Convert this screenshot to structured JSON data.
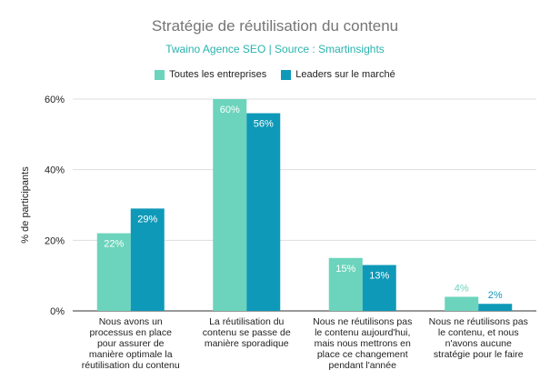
{
  "chart_data": {
    "type": "bar",
    "title": "Stratégie de réutilisation du contenu",
    "subtitle": "Twaino Agence SEO | Source : Smartinsights",
    "ylabel": "% de participants",
    "xlabel": "",
    "ylim": [
      0,
      60
    ],
    "yticks": [
      "0%",
      "20%",
      "40%",
      "60%"
    ],
    "ytick_values": [
      0,
      20,
      40,
      60
    ],
    "grid": true,
    "legend_position": "top",
    "categories": [
      [
        "Nous avons un",
        "processus en place",
        "pour assurer de",
        "manière optimale la",
        "réutilisation du contenu"
      ],
      [
        "La réutilisation du",
        "contenu se passe de",
        "manière sporadique"
      ],
      [
        "Nous ne réutilisons pas",
        "le contenu aujourd'hui,",
        "mais nous mettrons en",
        "place ce changement",
        "pendant l'année"
      ],
      [
        "Nous ne réutilisons pas",
        "le contenu, et nous",
        "n'avons aucune",
        "stratégie pour le faire"
      ]
    ],
    "series": [
      {
        "name": "Toutes les entreprises",
        "color": "#6cd4bc",
        "values": [
          22,
          60,
          15,
          4
        ],
        "labels": [
          "22%",
          "60%",
          "15%",
          "4%"
        ]
      },
      {
        "name": "Leaders sur le marché",
        "color": "#0f99b8",
        "values": [
          29,
          56,
          13,
          2
        ],
        "labels": [
          "29%",
          "56%",
          "13%",
          "2%"
        ]
      }
    ]
  }
}
